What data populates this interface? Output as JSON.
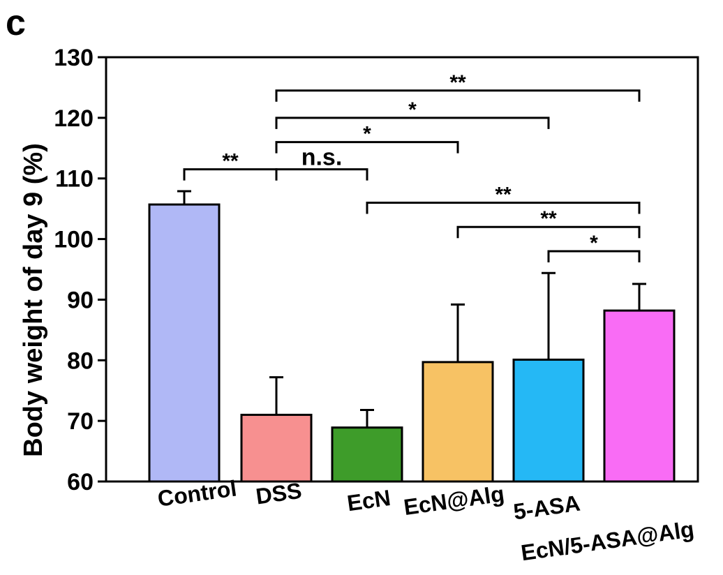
{
  "panel_label": "c",
  "chart_data": {
    "type": "bar",
    "ylabel": "Body weight of day 9 (%)",
    "xlabel": "",
    "ylim": [
      60,
      130
    ],
    "yticks": [
      60,
      70,
      80,
      90,
      100,
      110,
      120,
      130
    ],
    "categories": [
      "Control",
      "DSS",
      "EcN",
      "EcN@Alg",
      "5-ASA",
      "EcN/5-ASA@Alg"
    ],
    "values": [
      105.7,
      71.0,
      68.9,
      79.7,
      80.1,
      88.2
    ],
    "errors": [
      2.2,
      6.2,
      2.9,
      9.5,
      14.3,
      4.4
    ],
    "colors": [
      "#b0b8f6",
      "#f79090",
      "#3e9c2a",
      "#f7c264",
      "#25b8f5",
      "#f96cf5"
    ],
    "grid": false,
    "significance": [
      {
        "from": 0,
        "to": 1,
        "label": "**",
        "y": 111.5
      },
      {
        "from": 1,
        "to": 2,
        "label": "n.s.",
        "y": 111.5
      },
      {
        "from": 1,
        "to": 3,
        "label": "*",
        "y": 116.0
      },
      {
        "from": 1,
        "to": 4,
        "label": "*",
        "y": 120.0
      },
      {
        "from": 1,
        "to": 5,
        "label": "**",
        "y": 124.5
      },
      {
        "from": 2,
        "to": 5,
        "label": "**",
        "y": 106.0
      },
      {
        "from": 3,
        "to": 5,
        "label": "**",
        "y": 102.0
      },
      {
        "from": 4,
        "to": 5,
        "label": "*",
        "y": 98.0
      }
    ]
  }
}
